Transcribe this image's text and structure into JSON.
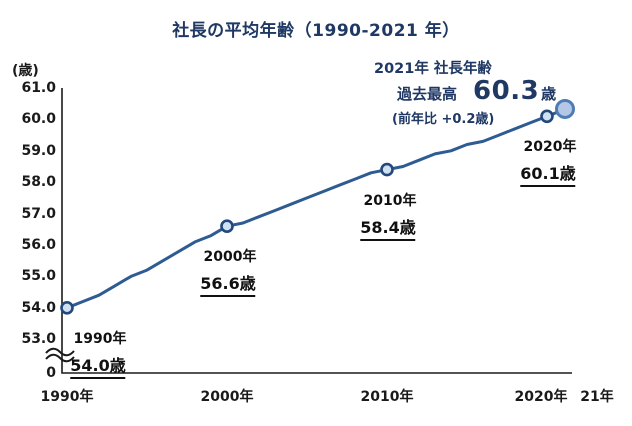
{
  "title": "社長の平均年齢（1990-2021 年）",
  "y_axis": {
    "unit_label": "(歳)",
    "tick_values": [
      61.0,
      60.0,
      59.0,
      58.0,
      57.0,
      56.0,
      55.0,
      54.0,
      53.0
    ],
    "tick_labels": [
      "61.0",
      "60.0",
      "59.0",
      "58.0",
      "57.0",
      "56.0",
      "55.0",
      "54.0",
      "53.0"
    ],
    "zero_label": "0",
    "has_axis_break": true
  },
  "x_axis": {
    "ticks": [
      {
        "label": "1990年",
        "year": 1990
      },
      {
        "label": "2000年",
        "year": 2000
      },
      {
        "label": "2010年",
        "year": 2010
      },
      {
        "label": "21年",
        "year": 2021
      }
    ],
    "tick_2020_label": "2020年"
  },
  "annotation": {
    "line1": "2021年 社長年齢",
    "line2_prefix": "過去最高",
    "line2_value": "60.3",
    "line2_suffix": "歳",
    "line3": "(前年比 +0.2歳)"
  },
  "callouts": [
    {
      "year_label": "1990年",
      "value_label": "54.0歳",
      "year": 1990,
      "value": 54.0
    },
    {
      "year_label": "2000年",
      "value_label": "56.6歳",
      "year": 2000,
      "value": 56.6
    },
    {
      "year_label": "2010年",
      "value_label": "58.4歳",
      "year": 2010,
      "value": 58.4
    },
    {
      "year_label": "2020年",
      "value_label": "60.1歳",
      "year": 2020,
      "value": 60.1
    }
  ],
  "highlight": {
    "year": 2021,
    "value": 60.3
  },
  "colors": {
    "title": "#1f3864",
    "annotation": "#1f3864",
    "line": "#2f5b93",
    "marker_fill": "#cfe0f2",
    "marker_stroke": "#24477c",
    "highlight_fill": "#b4c7e7",
    "highlight_stroke": "#4f7cb4",
    "axis": "#1a1a1a"
  },
  "chart_data": {
    "type": "line",
    "title": "社長の平均年齢（1990-2021 年）",
    "xlabel": "",
    "ylabel": "(歳)",
    "ylim": [
      53.0,
      61.0
    ],
    "axis_break_to_zero": true,
    "grid": false,
    "legend": false,
    "x": [
      1990,
      1991,
      1992,
      1993,
      1994,
      1995,
      1996,
      1997,
      1998,
      1999,
      2000,
      2001,
      2002,
      2003,
      2004,
      2005,
      2006,
      2007,
      2008,
      2009,
      2010,
      2011,
      2012,
      2013,
      2014,
      2015,
      2016,
      2017,
      2018,
      2019,
      2020,
      2021
    ],
    "values": [
      54.0,
      54.2,
      54.4,
      54.7,
      55.0,
      55.2,
      55.5,
      55.8,
      56.1,
      56.3,
      56.6,
      56.7,
      56.9,
      57.1,
      57.3,
      57.5,
      57.7,
      57.9,
      58.1,
      58.3,
      58.4,
      58.5,
      58.7,
      58.9,
      59.0,
      59.2,
      59.3,
      59.5,
      59.7,
      59.9,
      60.1,
      60.3
    ],
    "labeled_points": [
      {
        "x": 1990,
        "y": 54.0
      },
      {
        "x": 2000,
        "y": 56.6
      },
      {
        "x": 2010,
        "y": 58.4
      },
      {
        "x": 2020,
        "y": 60.1
      },
      {
        "x": 2021,
        "y": 60.3
      }
    ]
  }
}
